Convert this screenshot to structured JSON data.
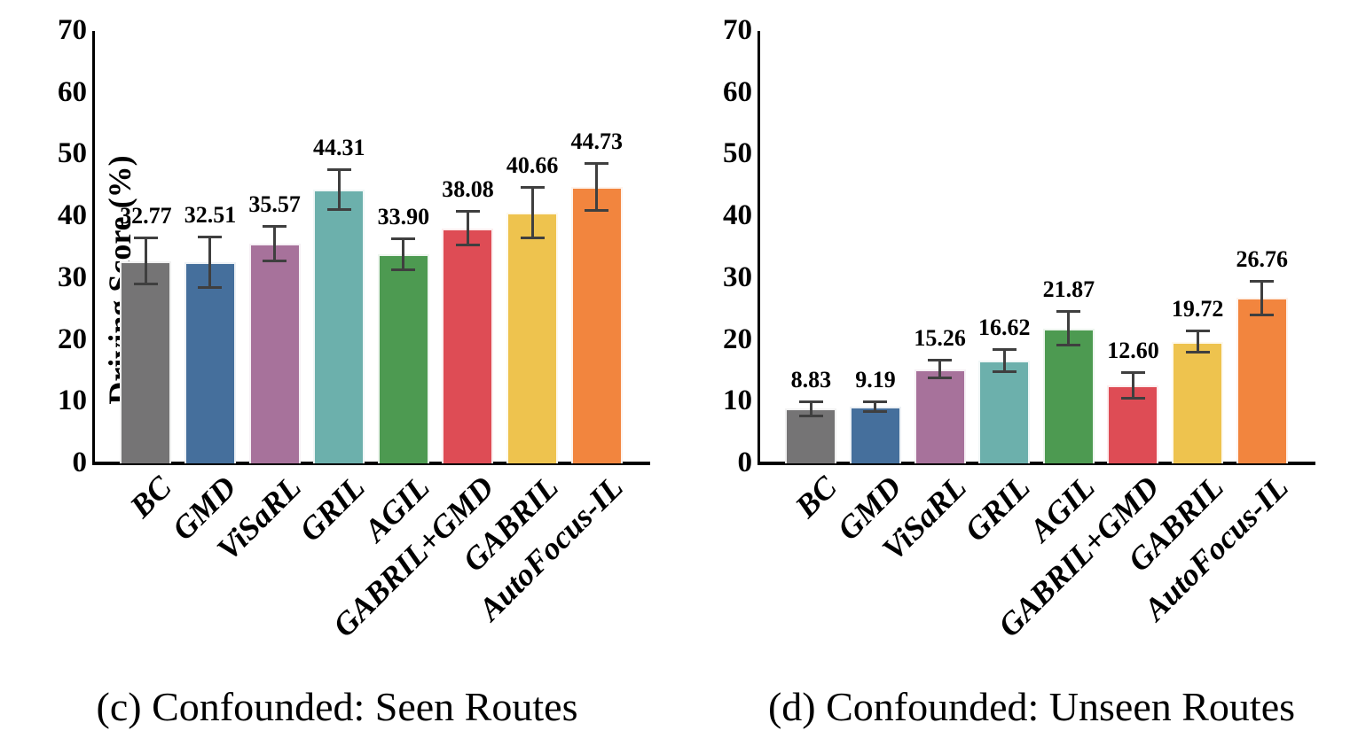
{
  "page": {
    "background": "#ffffff",
    "axis_color": "#000000",
    "error_bar_color": "#3F3F3F"
  },
  "shared": {
    "bar_colors": [
      "#757475",
      "#456F9C",
      "#A7729B",
      "#6CB0AC",
      "#4D9A51",
      "#DE4C55",
      "#EEC34E",
      "#F2853E"
    ]
  },
  "chart_data": [
    {
      "type": "bar",
      "title": "(c) Confounded: Seen Routes",
      "xlabel": "",
      "ylabel": "Driving Score (%)",
      "categories": [
        "BC",
        "GMD",
        "ViSaRL",
        "GRIL",
        "AGIL",
        "GABRIL+GMD",
        "GABRIL",
        "AutoFocus-IL"
      ],
      "values": [
        32.77,
        32.51,
        35.57,
        44.31,
        33.9,
        38.08,
        40.66,
        44.73
      ],
      "errors": [
        3.9,
        4.3,
        3.0,
        3.4,
        2.7,
        3.0,
        4.3,
        4.0
      ],
      "colors": [
        "#757475",
        "#456F9C",
        "#A7729B",
        "#6CB0AC",
        "#4D9A51",
        "#DE4C55",
        "#EEC34E",
        "#F2853E"
      ],
      "ylim": [
        0,
        70
      ],
      "yticks": [
        0,
        10,
        20,
        30,
        40,
        50,
        60,
        70
      ],
      "grid": false,
      "legend": false,
      "tick_label_rotation": 45
    },
    {
      "type": "bar",
      "title": "(d) Confounded: Unseen Routes",
      "xlabel": "",
      "ylabel": "",
      "categories": [
        "BC",
        "GMD",
        "ViSaRL",
        "GRIL",
        "AGIL",
        "GABRIL+GMD",
        "GABRIL",
        "AutoFocus-IL"
      ],
      "values": [
        8.83,
        9.19,
        15.26,
        16.62,
        21.87,
        12.6,
        19.72,
        26.76
      ],
      "errors": [
        1.3,
        1.0,
        1.6,
        2.0,
        2.9,
        2.3,
        1.9,
        2.9
      ],
      "colors": [
        "#757475",
        "#456F9C",
        "#A7729B",
        "#6CB0AC",
        "#4D9A51",
        "#DE4C55",
        "#EEC34E",
        "#F2853E"
      ],
      "ylim": [
        0,
        70
      ],
      "yticks": [
        0,
        10,
        20,
        30,
        40,
        50,
        60,
        70
      ],
      "grid": false,
      "legend": false,
      "tick_label_rotation": 45
    }
  ]
}
